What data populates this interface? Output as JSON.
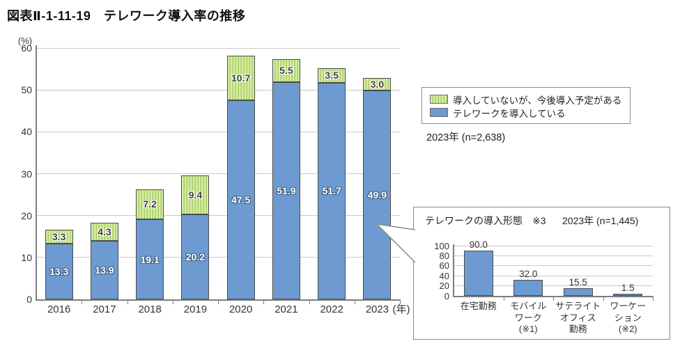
{
  "figure_title": "図表Ⅱ-1-11-19　テレワーク導入率の推移",
  "colors": {
    "bar_blue": "#6D9BD1",
    "green_fill": "#D8ECA6",
    "green_stripe": "#A3CF60",
    "bar_border": "#4B4B4B",
    "axis_gray": "#7D7D7D",
    "gridline_gray": "#C9C9C9",
    "panel_border": "#8A8A8A"
  },
  "chart_data": [
    {
      "id": "main",
      "type": "bar",
      "stacked": true,
      "unit_label": "(%)",
      "x_axis_suffix": "(年)",
      "categories": [
        "2016",
        "2017",
        "2018",
        "2019",
        "2020",
        "2021",
        "2022",
        "2023"
      ],
      "series": [
        {
          "name": "テレワークを導入している",
          "color": "#6D9BD1",
          "values": [
            13.3,
            13.9,
            19.1,
            20.2,
            47.5,
            51.9,
            51.7,
            49.9
          ]
        },
        {
          "name": "導入していないが、今後導入予定がある",
          "color_fill": "#D8ECA6",
          "color_stripe": "#A3CF60",
          "values": [
            3.3,
            4.3,
            7.2,
            9.4,
            10.7,
            5.5,
            3.5,
            3.0
          ]
        }
      ],
      "ylim": [
        0,
        60
      ],
      "yticks": [
        0,
        10,
        20,
        30,
        40,
        50,
        60
      ],
      "grid": true,
      "legend_position": "right",
      "legend_note": "2023年 (n=2,638)"
    },
    {
      "id": "inset",
      "type": "bar",
      "title": "テレワークの導入形態　※3",
      "note": "2023年 (n=1,445)",
      "categories": [
        "在宅勤務",
        "モバイル\nワーク\n(※1)",
        "サテライト\nオフィス\n勤務",
        "ワーケー\nション\n(※2)"
      ],
      "values": [
        90.0,
        32.0,
        15.5,
        1.5
      ],
      "bar_color": "#6D9BD1",
      "ylim": [
        0,
        100
      ],
      "yticks": [
        0,
        20,
        40,
        60,
        80,
        100
      ],
      "grid": true
    }
  ]
}
